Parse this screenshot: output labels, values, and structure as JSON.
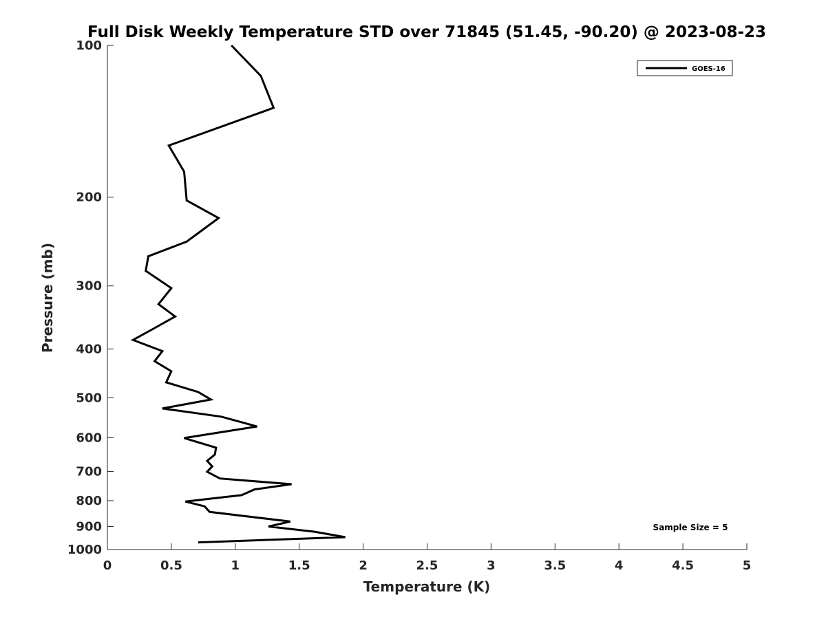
{
  "chart_data": {
    "type": "line",
    "title": "Full Disk Weekly Temperature STD over 71845 (51.45, -90.20) @ 2023-08-23",
    "xlabel": "Temperature (K)",
    "ylabel": "Pressure (mb)",
    "xlim": [
      0,
      5
    ],
    "ylim": [
      100,
      1000
    ],
    "y_scale": "log",
    "y_reversed": true,
    "x_ticks": [
      "0",
      "0.5",
      "1",
      "1.5",
      "2",
      "2.5",
      "3",
      "3.5",
      "4",
      "4.5",
      "5"
    ],
    "y_ticks": [
      "100",
      "200",
      "300",
      "400",
      "500",
      "600",
      "700",
      "800",
      "900",
      "1000"
    ],
    "grid": false,
    "legend_position": "top-right",
    "series": [
      {
        "name": "GOES-16",
        "color": "#000000",
        "x": [
          0.97,
          1.2,
          1.3,
          0.48,
          0.6,
          0.62,
          0.87,
          0.62,
          0.32,
          0.3,
          0.5,
          0.4,
          0.53,
          0.35,
          0.2,
          0.43,
          0.37,
          0.5,
          0.46,
          0.71,
          0.81,
          0.43,
          0.89,
          1.17,
          0.6,
          0.85,
          0.84,
          0.78,
          0.82,
          0.78,
          0.88,
          1.44,
          1.15,
          1.05,
          0.61,
          0.76,
          0.8,
          1.43,
          1.26,
          1.62,
          1.86,
          0.71
        ],
        "y": [
          100,
          115,
          133,
          158,
          178,
          203,
          220,
          245,
          262,
          280,
          303,
          326,
          345,
          366,
          384,
          404,
          423,
          443,
          466,
          487,
          504,
          525,
          545,
          570,
          601,
          628,
          648,
          667,
          684,
          701,
          723,
          742,
          760,
          780,
          803,
          821,
          842,
          880,
          900,
          922,
          945,
          968
        ]
      }
    ],
    "annotation": "Sample Size = 5"
  }
}
